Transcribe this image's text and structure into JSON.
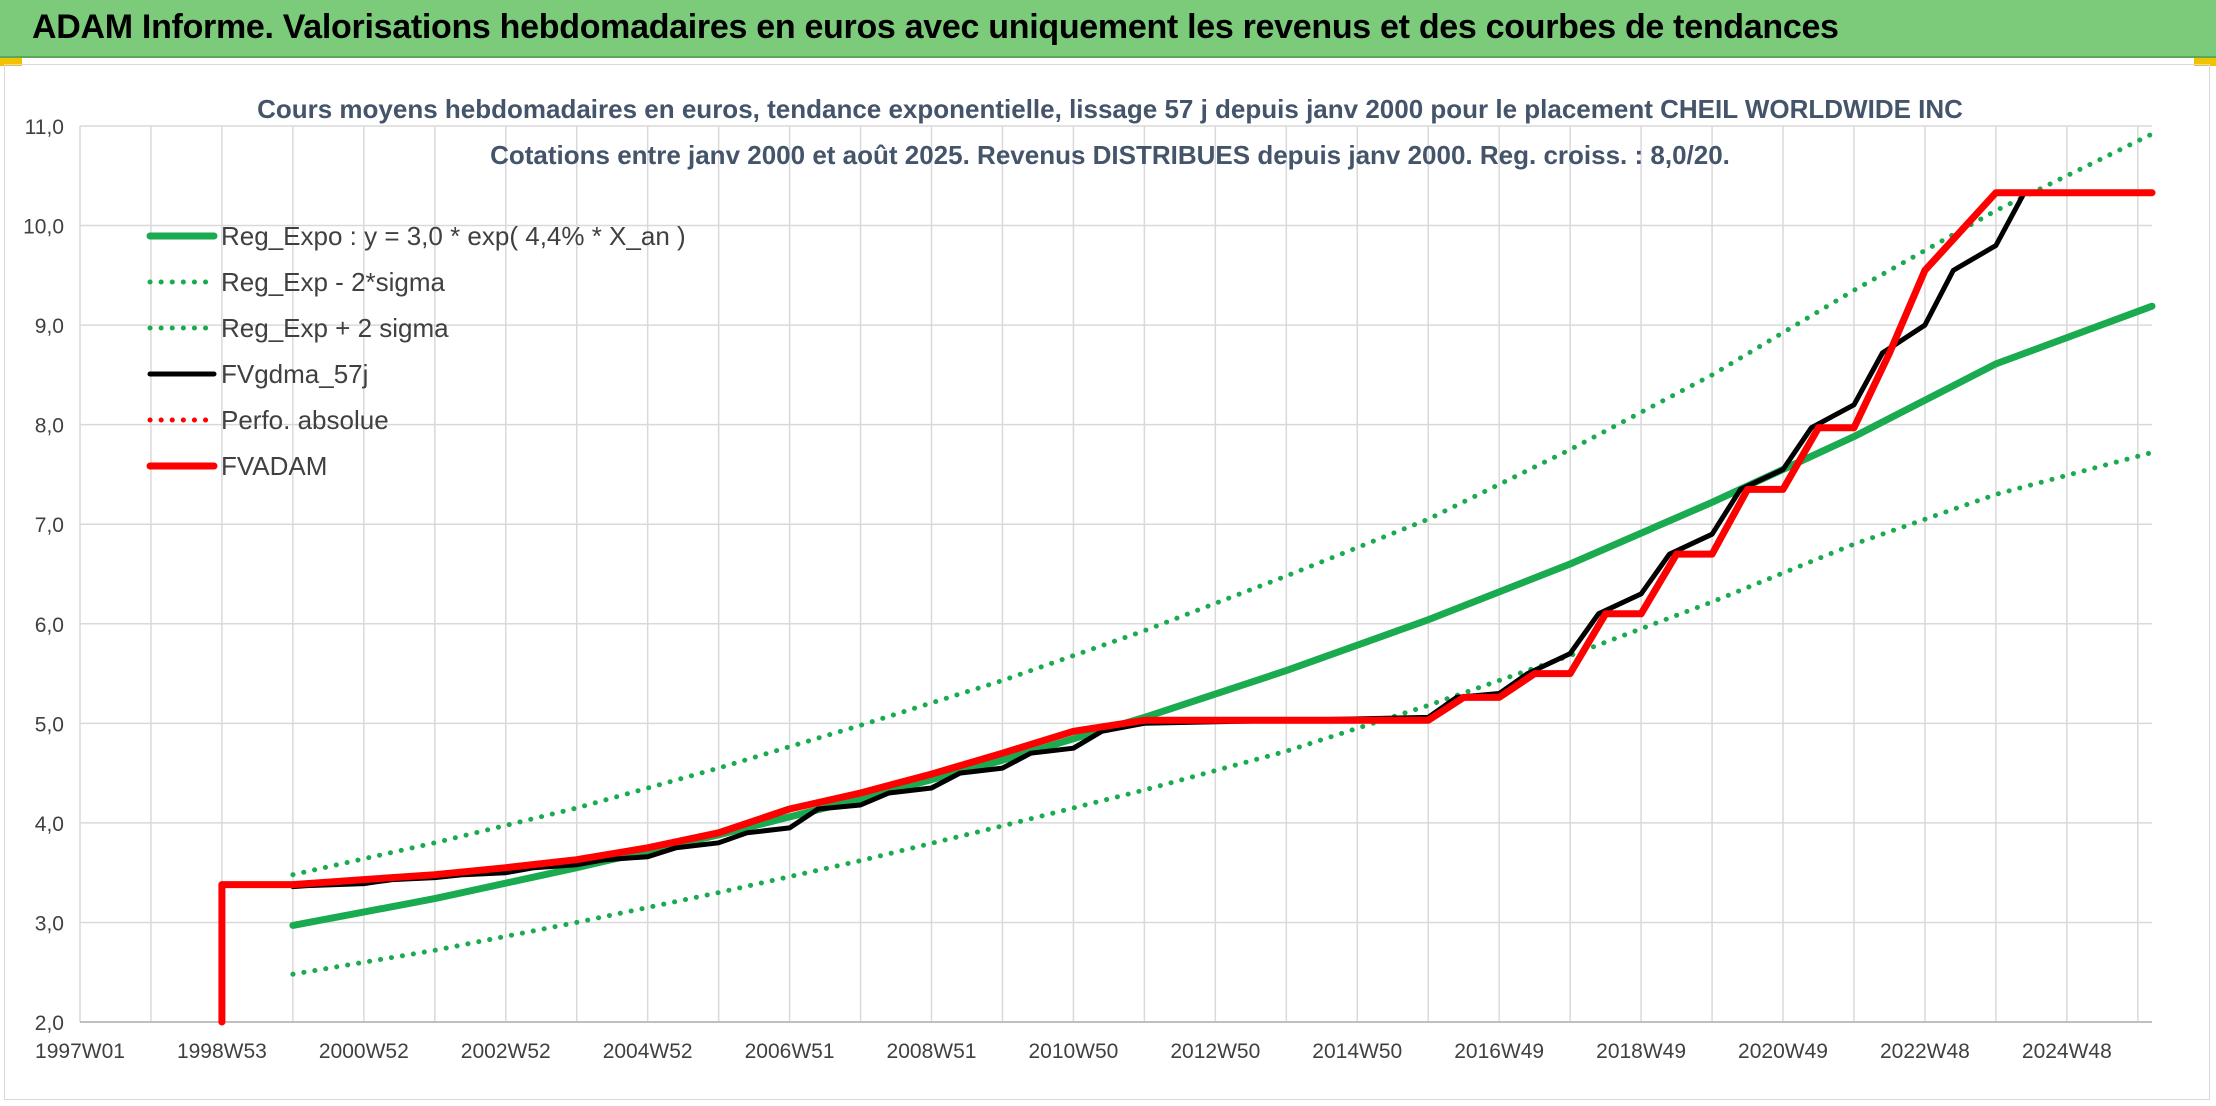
{
  "banner": {
    "title": "ADAM Informe. Valorisations hebdomadaires en euros avec uniquement les revenus et des courbes de tendances"
  },
  "colors": {
    "banner": "#7ccb7a",
    "reg_green": "#1aaa4f",
    "fv_black": "#000000",
    "adam_red": "#ff0000",
    "grid": "#d9d9d9"
  },
  "chart_data": {
    "type": "line",
    "title_lines": [
      "Cours moyens hebdomadaires en euros, tendance exponentielle, lissage 57 j depuis janv 2000 pour le placement CHEIL WORLDWIDE INC",
      "Cotations entre janv 2000 et août 2025. Revenus DISTRIBUES depuis janv 2000. Reg. croiss. : 8,0/20."
    ],
    "xlabel": "",
    "ylabel": "",
    "x_range": [
      1997.0,
      2026.2
    ],
    "x_ticks": [
      {
        "x": 1997.0,
        "label": "1997W01"
      },
      {
        "x": 1999.0,
        "label": "1998W53"
      },
      {
        "x": 2001.0,
        "label": "2000W52"
      },
      {
        "x": 2003.0,
        "label": "2002W52"
      },
      {
        "x": 2005.0,
        "label": "2004W52"
      },
      {
        "x": 2007.0,
        "label": "2006W51"
      },
      {
        "x": 2009.0,
        "label": "2008W51"
      },
      {
        "x": 2011.0,
        "label": "2010W50"
      },
      {
        "x": 2013.0,
        "label": "2012W50"
      },
      {
        "x": 2015.0,
        "label": "2014W50"
      },
      {
        "x": 2017.0,
        "label": "2016W49"
      },
      {
        "x": 2019.0,
        "label": "2018W49"
      },
      {
        "x": 2021.0,
        "label": "2020W49"
      },
      {
        "x": 2023.0,
        "label": "2022W48"
      },
      {
        "x": 2025.0,
        "label": "2024W48"
      }
    ],
    "y_range": [
      2.0,
      11.0
    ],
    "y_ticks": [
      {
        "y": 2.0,
        "label": "2,0"
      },
      {
        "y": 3.0,
        "label": "3,0"
      },
      {
        "y": 4.0,
        "label": "4,0"
      },
      {
        "y": 5.0,
        "label": "5,0"
      },
      {
        "y": 6.0,
        "label": "6,0"
      },
      {
        "y": 7.0,
        "label": "7,0"
      },
      {
        "y": 8.0,
        "label": "8,0"
      },
      {
        "y": 9.0,
        "label": "9,0"
      },
      {
        "y": 10.0,
        "label": "10,0"
      },
      {
        "y": 11.0,
        "label": "11,0"
      }
    ],
    "grid": true,
    "legend_position": "top-left",
    "series": [
      {
        "name": "Reg_Expo : y = 3,0 * exp( 4,4% *  X_an )",
        "style": "solid",
        "color": "#1aaa4f",
        "x": [
          2000.0,
          2002.0,
          2004.0,
          2006.0,
          2008.0,
          2010.0,
          2012.0,
          2014.0,
          2016.0,
          2018.0,
          2020.0,
          2022.0,
          2024.0,
          2026.2
        ],
        "values": [
          2.97,
          3.24,
          3.55,
          3.88,
          4.24,
          4.63,
          5.06,
          5.53,
          6.04,
          6.6,
          7.22,
          7.88,
          8.61,
          9.19
        ]
      },
      {
        "name": "Reg_Exp - 2*sigma",
        "style": "dotted",
        "color": "#1aaa4f",
        "x": [
          2000.0,
          2002.0,
          2004.0,
          2006.0,
          2008.0,
          2010.0,
          2012.0,
          2014.0,
          2016.0,
          2018.0,
          2020.0,
          2022.0,
          2024.0,
          2026.2
        ],
        "values": [
          2.48,
          2.72,
          3.0,
          3.3,
          3.62,
          3.97,
          4.33,
          4.72,
          5.18,
          5.68,
          6.22,
          6.8,
          7.3,
          7.72
        ]
      },
      {
        "name": "Reg_Exp + 2 sigma",
        "style": "dotted",
        "color": "#1aaa4f",
        "x": [
          2000.0,
          2002.0,
          2004.0,
          2006.0,
          2008.0,
          2010.0,
          2012.0,
          2014.0,
          2016.0,
          2018.0,
          2020.0,
          2022.0,
          2024.0,
          2026.2
        ],
        "values": [
          3.48,
          3.8,
          4.15,
          4.55,
          4.98,
          5.43,
          5.93,
          6.48,
          7.05,
          7.75,
          8.5,
          9.35,
          10.15,
          10.92
        ]
      },
      {
        "name": "FVgdma_57j",
        "style": "solid",
        "color": "#000000",
        "x": [
          2000.0,
          2000.2,
          2001.0,
          2001.4,
          2002.0,
          2002.4,
          2003.0,
          2003.4,
          2004.0,
          2004.4,
          2005.0,
          2005.4,
          2006.0,
          2006.4,
          2007.0,
          2007.4,
          2008.0,
          2008.4,
          2009.0,
          2009.4,
          2010.0,
          2010.4,
          2011.0,
          2011.4,
          2012.0,
          2016.0,
          2016.4,
          2017.0,
          2017.4,
          2018.0,
          2018.4,
          2019.0,
          2019.4,
          2020.0,
          2020.4,
          2021.0,
          2021.4,
          2022.0,
          2022.4,
          2023.0,
          2023.4,
          2024.0,
          2024.4,
          2026.2
        ],
        "values": [
          3.36,
          3.37,
          3.39,
          3.43,
          3.45,
          3.48,
          3.5,
          3.55,
          3.58,
          3.63,
          3.66,
          3.75,
          3.8,
          3.9,
          3.95,
          4.14,
          4.18,
          4.3,
          4.35,
          4.5,
          4.55,
          4.7,
          4.75,
          4.92,
          5.0,
          5.06,
          5.26,
          5.3,
          5.5,
          5.7,
          6.1,
          6.3,
          6.7,
          6.9,
          7.35,
          7.55,
          7.97,
          8.2,
          8.72,
          9.0,
          9.55,
          9.8,
          10.33,
          10.33
        ]
      },
      {
        "name": "Perfo. absolue",
        "style": "dotted",
        "color": "#ff0000",
        "x": [],
        "values": []
      },
      {
        "name": "FVADAM",
        "style": "step",
        "color": "#ff0000",
        "x": [
          1999.0,
          1999.0,
          2000.0,
          2001.0,
          2002.0,
          2003.0,
          2004.0,
          2005.0,
          2006.0,
          2007.0,
          2008.0,
          2009.0,
          2010.0,
          2011.0,
          2012.0,
          2016.0,
          2016.5,
          2017.0,
          2017.5,
          2018.0,
          2018.5,
          2019.0,
          2019.5,
          2020.0,
          2020.5,
          2021.0,
          2021.5,
          2022.0,
          2022.5,
          2023.0,
          2024.0,
          2026.2
        ],
        "values": [
          2.0,
          3.38,
          3.38,
          3.43,
          3.48,
          3.55,
          3.63,
          3.75,
          3.9,
          4.14,
          4.3,
          4.49,
          4.7,
          4.92,
          5.03,
          5.03,
          5.26,
          5.26,
          5.5,
          5.5,
          6.1,
          6.1,
          6.7,
          6.7,
          7.35,
          7.35,
          7.97,
          7.97,
          8.72,
          9.55,
          10.33,
          10.33
        ]
      }
    ]
  }
}
